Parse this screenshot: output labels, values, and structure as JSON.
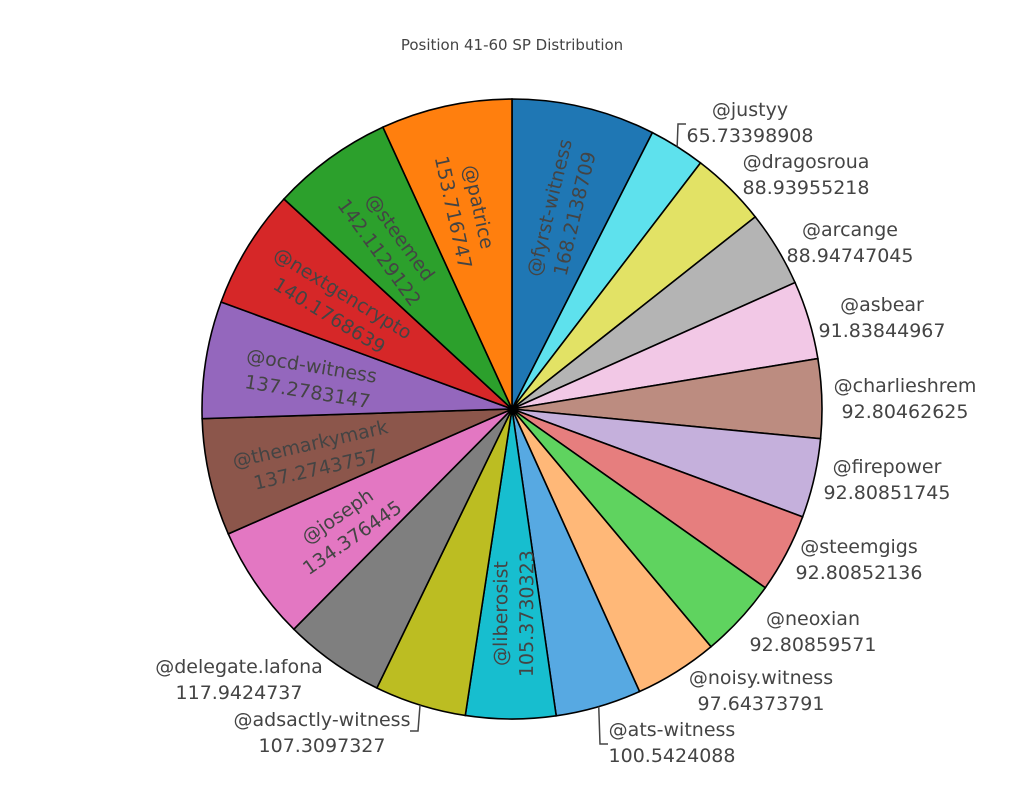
{
  "chart_data": {
    "type": "pie",
    "title": "Position 41-60 SP Distribution",
    "direction": "clockwise",
    "sort": "descending",
    "series": [
      {
        "name": "@fyrst-witness",
        "value": 168.2138709,
        "color": "#1f77b4"
      },
      {
        "name": "@justyy",
        "value": 65.73398908,
        "color": "#5ee1ed"
      },
      {
        "name": "@dragosroua",
        "value": 88.93955218,
        "color": "#e2e265"
      },
      {
        "name": "@arcange",
        "value": 88.94747045,
        "color": "#b4b4b4"
      },
      {
        "name": "@asbear",
        "value": 91.83844967,
        "color": "#f2c8e6"
      },
      {
        "name": "@charlieshrem",
        "value": 92.80462625,
        "color": "#bc8c80"
      },
      {
        "name": "@firepower",
        "value": 92.80851745,
        "color": "#c5b0dc"
      },
      {
        "name": "@steemgigs",
        "value": 92.80852136,
        "color": "#e67e7e"
      },
      {
        "name": "@neoxian",
        "value": 92.80859571,
        "color": "#5fd35f"
      },
      {
        "name": "@noisy.witness",
        "value": 97.64373791,
        "color": "#ffb878"
      },
      {
        "name": "@ats-witness",
        "value": 100.5424088,
        "color": "#57a9e2"
      },
      {
        "name": "@liberosist",
        "value": 105.3730323,
        "color": "#17becf"
      },
      {
        "name": "@adsactly-witness",
        "value": 107.3097327,
        "color": "#bcbd22"
      },
      {
        "name": "@delegate.lafona",
        "value": 117.9424737,
        "color": "#7f7f7f"
      },
      {
        "name": "@joseph",
        "value": 134.376445,
        "color": "#e377c2"
      },
      {
        "name": "@themarkymark",
        "value": 137.2743757,
        "color": "#8c564b"
      },
      {
        "name": "@ocd-witness",
        "value": 137.2783147,
        "color": "#9467bd"
      },
      {
        "name": "@nextgencrypto",
        "value": 140.1768639,
        "color": "#d62728"
      },
      {
        "name": "@steemed",
        "value": 142.1129122,
        "color": "#2ca02c"
      },
      {
        "name": "@patrice",
        "value": 153.716747,
        "color": "#ff7f0e"
      }
    ]
  }
}
